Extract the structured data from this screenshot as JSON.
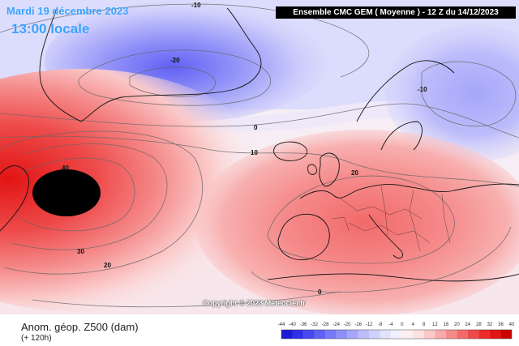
{
  "header": {
    "date": "Mardi 19 décembre 2023",
    "local_time": "13:00 locale",
    "run_info": "Ensemble CMC GEM  ( Moyenne )  - 12 Z du 14/12/2023"
  },
  "footer": {
    "parameter": "Anom. géop. Z500 (dam)",
    "lead_time": "(+ 120h)",
    "copyright": "Copyright © 2023 Meteociel.fr"
  },
  "contour_labels": [
    "-10",
    "-20",
    "0",
    "10",
    "-10",
    "40",
    "30",
    "20",
    "20",
    "0"
  ],
  "legend": {
    "ticks": [
      "-44",
      "-40",
      "-36",
      "-32",
      "-28",
      "-24",
      "-20",
      "-16",
      "-12",
      "-8",
      "-4",
      "0",
      "4",
      "8",
      "12",
      "16",
      "20",
      "24",
      "28",
      "32",
      "36",
      "40"
    ],
    "colors": [
      "#1b1bd6",
      "#2f2fe8",
      "#4848f2",
      "#6060f5",
      "#7878f6",
      "#8f8ff8",
      "#a6a6fa",
      "#bcbcfb",
      "#d0d0fc",
      "#e2e2fd",
      "#f0f0ff",
      "#fff0f0",
      "#fde0e0",
      "#fbc8c8",
      "#f8aaaa",
      "#f58a8a",
      "#f26a6a",
      "#ee4a4a",
      "#ea2c2c",
      "#e21414",
      "#cc0000"
    ]
  },
  "colors": {
    "ocean_neutral": "#f6f0f6",
    "negative_anomaly": "#8f8ff8",
    "positive_anomaly": "#ee4a4a",
    "core": "#000000",
    "title_blue": "#3aa0ff"
  }
}
